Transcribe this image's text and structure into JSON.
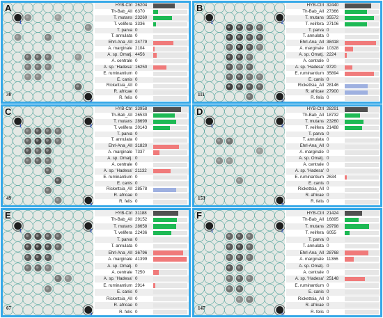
{
  "colors": {
    "border": "#35a8e8",
    "bar_control": "#505050",
    "bar_theileria_babesia": "#1db954",
    "bar_ehrlichia_anaplasma": "#f07a7a",
    "bar_rickettsia": "#9eb0e0",
    "membrane_background": "#e4e8e4",
    "grid_line": "#5aa8a0"
  },
  "probe_names": [
    "HYB-Ctrl",
    "Th-Bab_All",
    "T. mutans",
    "T. velifera",
    "T. parva",
    "T. annulata",
    "Ehrl-Ana_All",
    "A. marginale",
    "A. sp. Omatj.",
    "A. centrale",
    "A. sp. 'Hadesa'",
    "E. ruminantium",
    "E. canis",
    "Rickettsia_All",
    "R. africae",
    "R. felis"
  ],
  "probe_groups": [
    "control",
    "theileria_babesia",
    "theileria_babesia",
    "theileria_babesia",
    "theileria_babesia",
    "theileria_babesia",
    "ehrlichia_anaplasma",
    "ehrlichia_anaplasma",
    "ehrlichia_anaplasma",
    "ehrlichia_anaplasma",
    "ehrlichia_anaplasma",
    "ehrlichia_anaplasma",
    "ehrlichia_anaplasma",
    "rickettsia",
    "rickettsia",
    "rickettsia"
  ],
  "panels": [
    {
      "id": "A",
      "sample": "30",
      "values": [
        "26204",
        "6370",
        "23260",
        "3336",
        "0",
        "0",
        "24779",
        "2104",
        "4456",
        "0",
        "16250",
        "0",
        "0",
        "0",
        "0",
        "0"
      ],
      "spots": [
        [
          1,
          1,
          0.5
        ],
        [
          2,
          1,
          0.3
        ],
        [
          5,
          1,
          0.2
        ],
        [
          1,
          3,
          0.3
        ],
        [
          4,
          3,
          0.4
        ],
        [
          2,
          5,
          0.55
        ],
        [
          3,
          5,
          0.6
        ],
        [
          4,
          5,
          0.5
        ],
        [
          2,
          6,
          0.45
        ],
        [
          3,
          6,
          0.5
        ],
        [
          4,
          6,
          0.4
        ],
        [
          2,
          7,
          0.3
        ],
        [
          3,
          7,
          0.35
        ],
        [
          7,
          8,
          0.6
        ],
        [
          8,
          2,
          0.3
        ],
        [
          7,
          5,
          0.25
        ]
      ],
      "markers": [
        [
          1,
          1,
          "1"
        ],
        [
          8,
          9,
          "3"
        ]
      ]
    },
    {
      "id": "B",
      "sample": "111",
      "values": [
        "32440",
        "27366",
        "35572",
        "27106",
        "0",
        "0",
        "38418",
        "10328",
        "2224",
        "0",
        "9720",
        "35894",
        "0",
        "28146",
        "27900",
        "0"
      ],
      "spots": [
        [
          3,
          2,
          0.9
        ],
        [
          4,
          2,
          0.8
        ],
        [
          5,
          2,
          0.7
        ],
        [
          6,
          2,
          0.6
        ],
        [
          3,
          3,
          0.85
        ],
        [
          4,
          3,
          0.8
        ],
        [
          5,
          3,
          0.7
        ],
        [
          6,
          3,
          0.7
        ],
        [
          3,
          4,
          0.6
        ],
        [
          4,
          4,
          0.9
        ],
        [
          5,
          4,
          0.7
        ],
        [
          6,
          4,
          0.4
        ],
        [
          3,
          5,
          0.8
        ],
        [
          4,
          5,
          0.8
        ],
        [
          5,
          5,
          0.5
        ],
        [
          3,
          6,
          0.7
        ],
        [
          4,
          6,
          0.5
        ],
        [
          5,
          6,
          0.6
        ],
        [
          3,
          7,
          0.6
        ],
        [
          4,
          7,
          0.7
        ],
        [
          5,
          7,
          0.5
        ],
        [
          6,
          7,
          0.4
        ],
        [
          3,
          8,
          0.9
        ],
        [
          4,
          8,
          0.8
        ],
        [
          5,
          8,
          0.7
        ],
        [
          6,
          8,
          0.6
        ],
        [
          5,
          9,
          0.5
        ]
      ],
      "markers": [
        [
          1,
          1,
          "1"
        ],
        [
          8,
          1,
          "2"
        ],
        [
          8,
          9,
          "3"
        ]
      ]
    },
    {
      "id": "C",
      "sample": "49",
      "values": [
        "33958",
        "26530",
        "28699",
        "20143",
        "0",
        "0",
        "31820",
        "7337",
        "0",
        "0",
        "21132",
        "0",
        "0",
        "28578",
        "0",
        "0"
      ],
      "spots": [
        [
          2,
          2,
          0.5
        ],
        [
          3,
          2,
          0.7
        ],
        [
          4,
          2,
          0.6
        ],
        [
          5,
          2,
          0.5
        ],
        [
          2,
          3,
          0.6
        ],
        [
          3,
          3,
          0.8
        ],
        [
          4,
          3,
          0.7
        ],
        [
          5,
          3,
          0.5
        ],
        [
          2,
          4,
          0.7
        ],
        [
          3,
          4,
          0.6
        ],
        [
          4,
          4,
          0.7
        ],
        [
          2,
          5,
          0.5
        ],
        [
          3,
          5,
          0.6
        ],
        [
          4,
          5,
          0.5
        ],
        [
          4,
          6,
          0.6
        ],
        [
          5,
          7,
          0.7
        ],
        [
          4,
          8,
          0.5
        ],
        [
          5,
          9,
          0.4
        ]
      ],
      "markers": [
        [
          1,
          1,
          "1"
        ],
        [
          8,
          1,
          "2"
        ],
        [
          8,
          9,
          "3"
        ]
      ]
    },
    {
      "id": "D",
      "sample": "153",
      "values": [
        "28291",
        "18732",
        "23260",
        "21488",
        "0",
        "0",
        "0",
        "0",
        "0",
        "0",
        "0",
        "2634",
        "0",
        "0",
        "0",
        "0"
      ],
      "spots": [
        [
          2,
          3,
          0.4
        ],
        [
          3,
          3,
          0.5
        ],
        [
          2,
          5,
          0.3
        ],
        [
          3,
          5,
          0.25
        ],
        [
          4,
          7,
          0.3
        ],
        [
          6,
          4,
          0.2
        ]
      ],
      "markers": [
        [
          1,
          1,
          "1"
        ],
        [
          8,
          1,
          "2"
        ],
        [
          8,
          9,
          "3"
        ]
      ]
    },
    {
      "id": "E",
      "sample": "67",
      "values": [
        "31188",
        "29152",
        "28658",
        "22436",
        "0",
        "0",
        "36796",
        "41399",
        "0",
        "7250",
        "0",
        "2914",
        "0",
        "0",
        "0",
        "0"
      ],
      "spots": [
        [
          2,
          2,
          0.7
        ],
        [
          3,
          2,
          0.8
        ],
        [
          4,
          2,
          0.7
        ],
        [
          5,
          2,
          0.6
        ],
        [
          2,
          3,
          0.8
        ],
        [
          3,
          3,
          0.9
        ],
        [
          4,
          3,
          0.8
        ],
        [
          5,
          3,
          0.6
        ],
        [
          2,
          4,
          0.7
        ],
        [
          3,
          4,
          0.8
        ],
        [
          4,
          4,
          0.7
        ],
        [
          2,
          5,
          0.5
        ],
        [
          3,
          5,
          0.6
        ],
        [
          4,
          5,
          0.4
        ],
        [
          5,
          6,
          0.5
        ],
        [
          6,
          6,
          0.3
        ],
        [
          4,
          7,
          0.4
        ]
      ],
      "markers": [
        [
          1,
          1,
          "1"
        ],
        [
          8,
          1,
          "2"
        ],
        [
          8,
          9,
          "3"
        ]
      ]
    },
    {
      "id": "F",
      "sample": "147",
      "values": [
        "21424",
        "16895",
        "29798",
        "6055",
        "0",
        "0",
        "28768",
        "11366",
        "0",
        "0",
        "25148",
        "0",
        "0",
        "0",
        "0",
        "0"
      ],
      "spots": [
        [
          3,
          2,
          0.6
        ],
        [
          4,
          2,
          0.7
        ],
        [
          5,
          2,
          0.5
        ],
        [
          3,
          3,
          0.7
        ],
        [
          4,
          3,
          0.8
        ],
        [
          5,
          3,
          0.6
        ],
        [
          3,
          4,
          0.6
        ],
        [
          4,
          4,
          0.7
        ],
        [
          5,
          4,
          0.5
        ],
        [
          3,
          5,
          0.7
        ],
        [
          4,
          5,
          0.6
        ],
        [
          3,
          6,
          0.5
        ],
        [
          4,
          6,
          0.6
        ],
        [
          5,
          6,
          0.4
        ],
        [
          3,
          7,
          0.5
        ],
        [
          4,
          7,
          0.6
        ],
        [
          5,
          8,
          0.4
        ],
        [
          4,
          8,
          0.3
        ]
      ],
      "markers": [
        [
          1,
          1,
          "1"
        ],
        [
          8,
          1,
          "2"
        ],
        [
          8,
          9,
          "3"
        ]
      ]
    }
  ]
}
